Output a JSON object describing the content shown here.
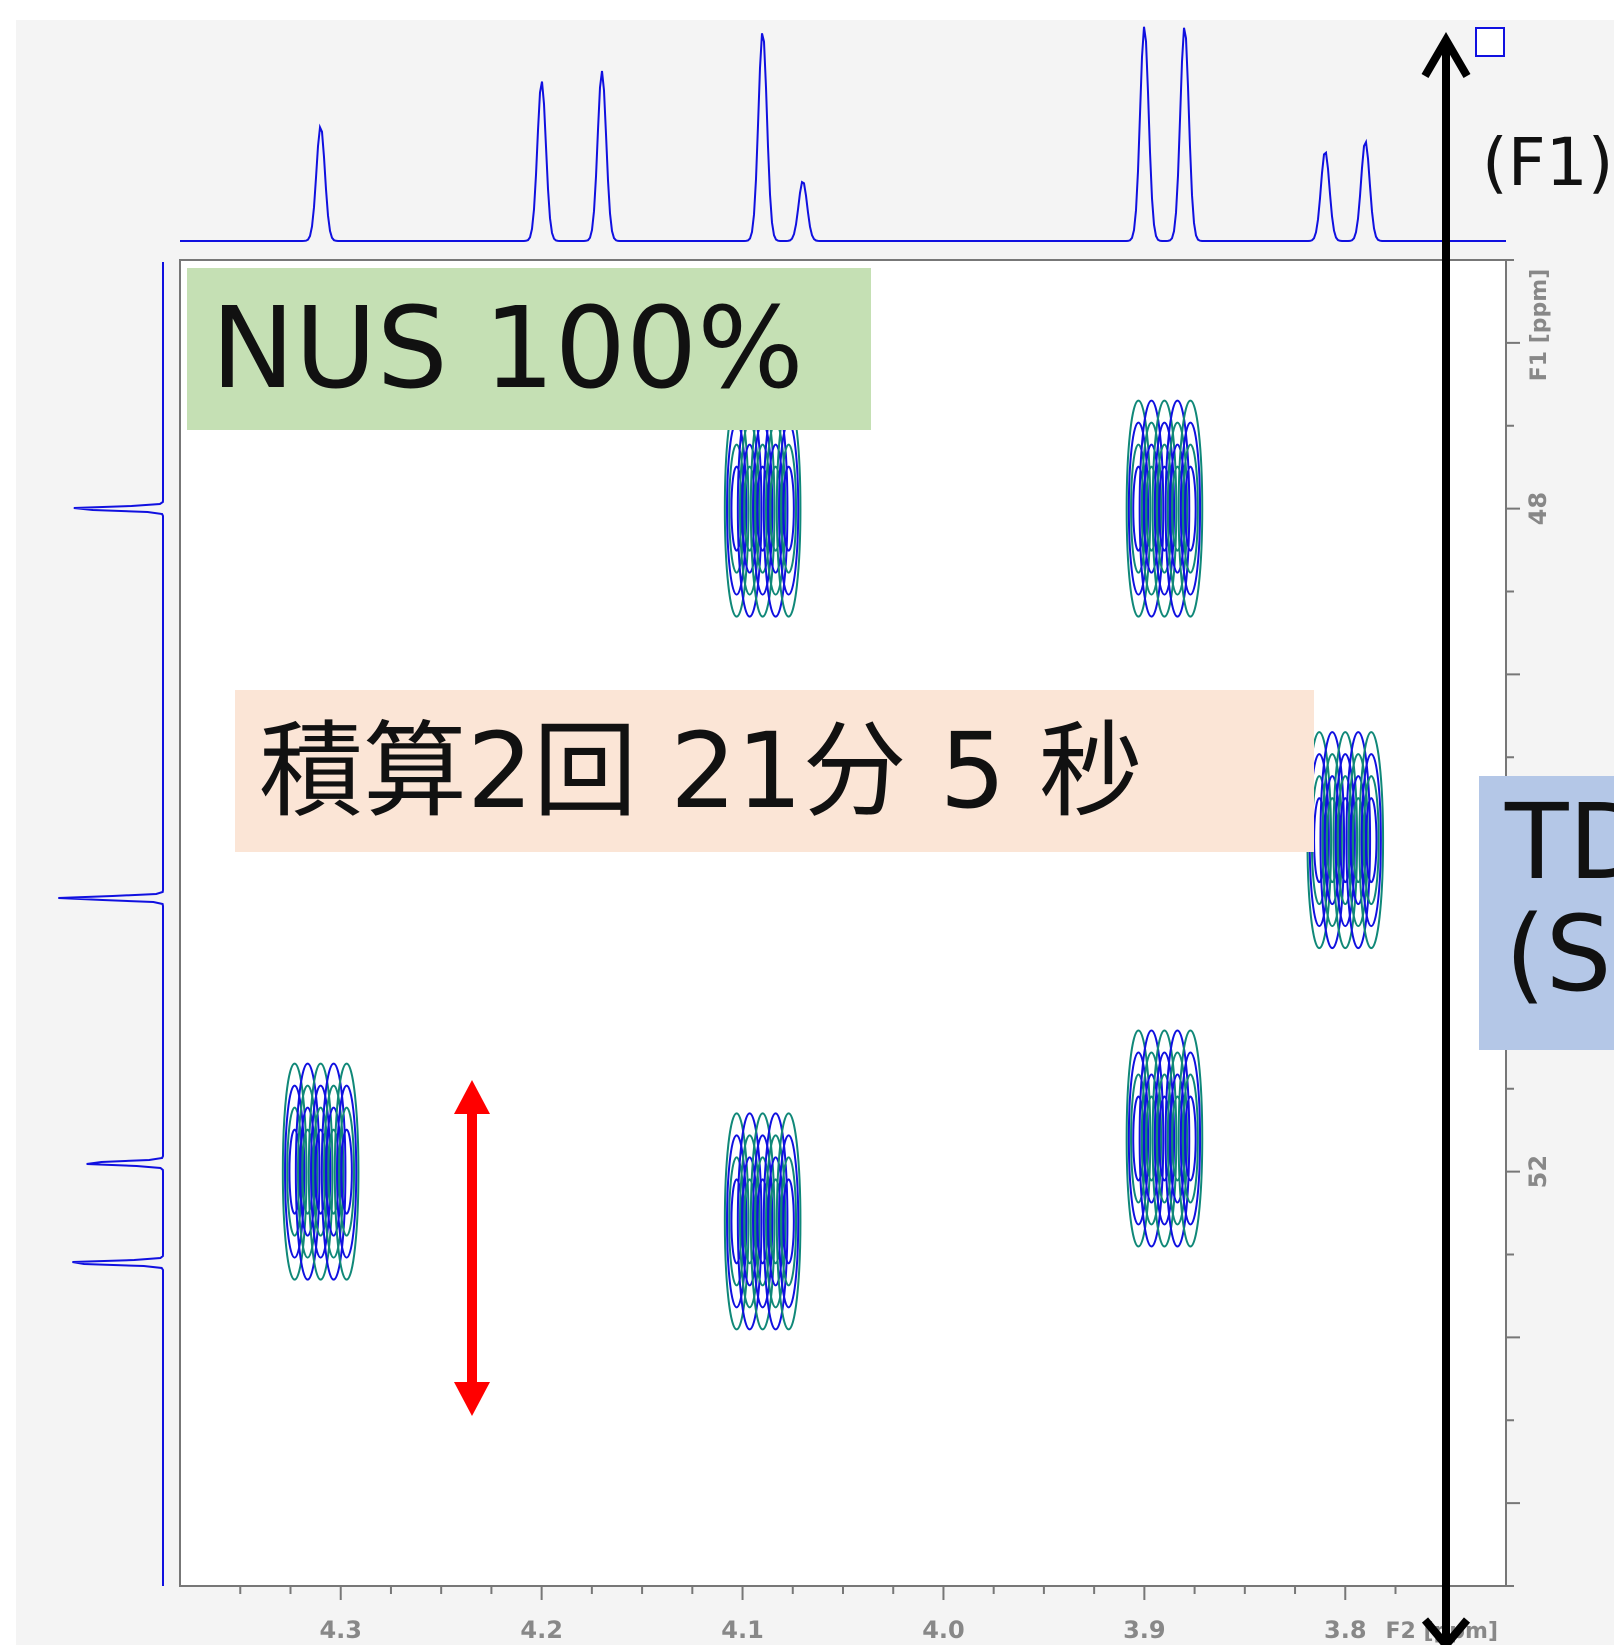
{
  "chart_data": {
    "type": "contour",
    "xlabel": "F2 [ppm]",
    "ylabel": "F1 [ppm]",
    "x_axis": {
      "reversed": true,
      "ticks": [
        4.3,
        4.2,
        4.1,
        4.0,
        3.9,
        3.8
      ],
      "range": [
        4.38,
        3.72
      ]
    },
    "y_axis": {
      "reversed": false,
      "ticks": [
        48,
        52
      ],
      "range": [
        46.5,
        54.5
      ]
    },
    "projection_top_peaks_ppm": [
      4.31,
      4.2,
      4.17,
      4.09,
      4.07,
      3.9,
      3.88,
      3.81,
      3.79
    ],
    "projection_left_peaks_ppm": [
      48.0,
      50.35,
      51.95,
      52.55
    ],
    "cross_peaks": [
      {
        "x": 4.09,
        "y": 48.0
      },
      {
        "x": 3.89,
        "y": 48.0
      },
      {
        "x": 3.8,
        "y": 50.0
      },
      {
        "x": 4.31,
        "y": 52.0
      },
      {
        "x": 4.09,
        "y": 52.3
      },
      {
        "x": 3.89,
        "y": 51.8
      }
    ],
    "contour_colors": {
      "positive": "#1010e0",
      "secondary": "#108878"
    },
    "annotations": {
      "nus": "NUS 100%",
      "scans": "積算2回 21分 5 秒",
      "td": "TD\n(S",
      "f1": "(F1)"
    },
    "marker_color": "#ff0000",
    "arrow_color": "#000000"
  }
}
